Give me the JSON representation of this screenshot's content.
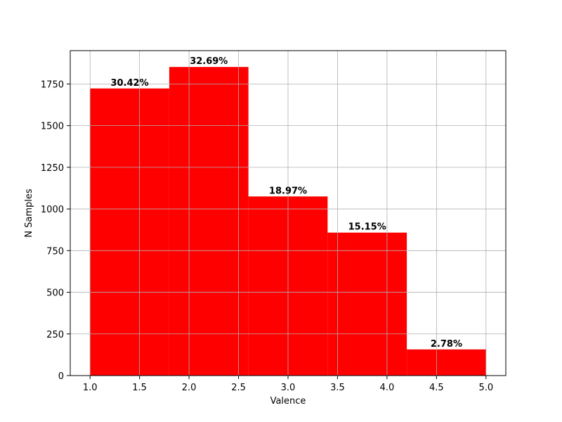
{
  "chart_data": {
    "type": "bar",
    "bin_edges": [
      1.0,
      1.8,
      2.6,
      3.4,
      4.2,
      5.0
    ],
    "values": [
      1723,
      1852,
      1075,
      858,
      157
    ],
    "labels": [
      "30.42%",
      "32.69%",
      "18.97%",
      "15.15%",
      "2.78%"
    ],
    "xlabel": "Valence",
    "ylabel": "N Samples",
    "xlim": [
      0.8,
      5.2
    ],
    "ylim": [
      0,
      1950
    ],
    "xticks": [
      1.0,
      1.5,
      2.0,
      2.5,
      3.0,
      3.5,
      4.0,
      4.5,
      5.0
    ],
    "xtick_labels": [
      "1.0",
      "1.5",
      "2.0",
      "2.5",
      "3.0",
      "3.5",
      "4.0",
      "4.5",
      "5.0"
    ],
    "yticks": [
      0,
      250,
      500,
      750,
      1000,
      1250,
      1500,
      1750
    ],
    "ytick_labels": [
      "0",
      "250",
      "500",
      "750",
      "1000",
      "1250",
      "1500",
      "1750"
    ],
    "grid": true,
    "bar_color": "#ff0000",
    "grid_color": "#b0b0b0"
  }
}
